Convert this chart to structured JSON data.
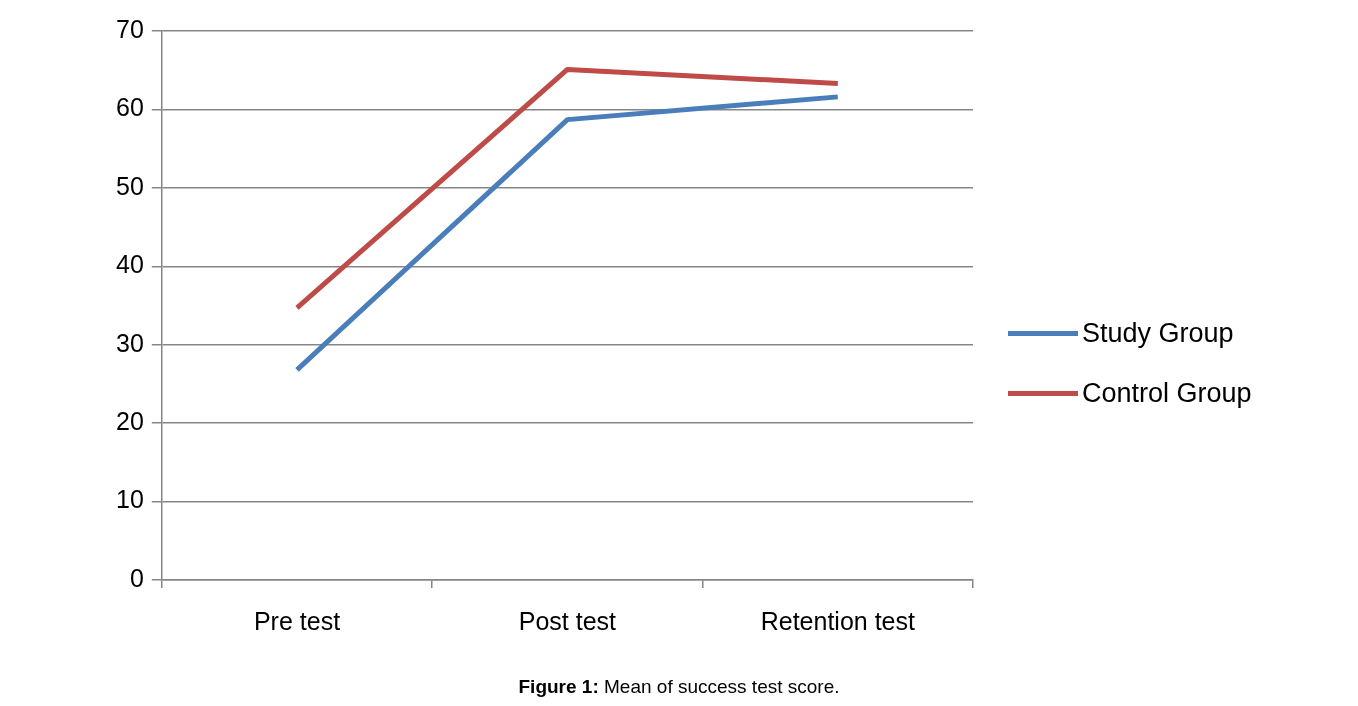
{
  "chart_data": {
    "type": "line",
    "categories": [
      "Pre test",
      "Post test",
      "Retention test"
    ],
    "series": [
      {
        "name": "Study Group",
        "color": "#4a7ebb",
        "values": [
          26.8,
          58.7,
          61.6
        ]
      },
      {
        "name": "Control Group",
        "color": "#be4b48",
        "values": [
          34.7,
          65.1,
          63.3
        ]
      }
    ],
    "ylim": [
      0,
      70
    ],
    "yticks": [
      0,
      10,
      20,
      30,
      40,
      50,
      60,
      70
    ],
    "grid": "y",
    "legend": "right",
    "marker": "none",
    "line_style": "solid",
    "annotations": [
      "Figure 1: Mean of success test score."
    ]
  }
}
